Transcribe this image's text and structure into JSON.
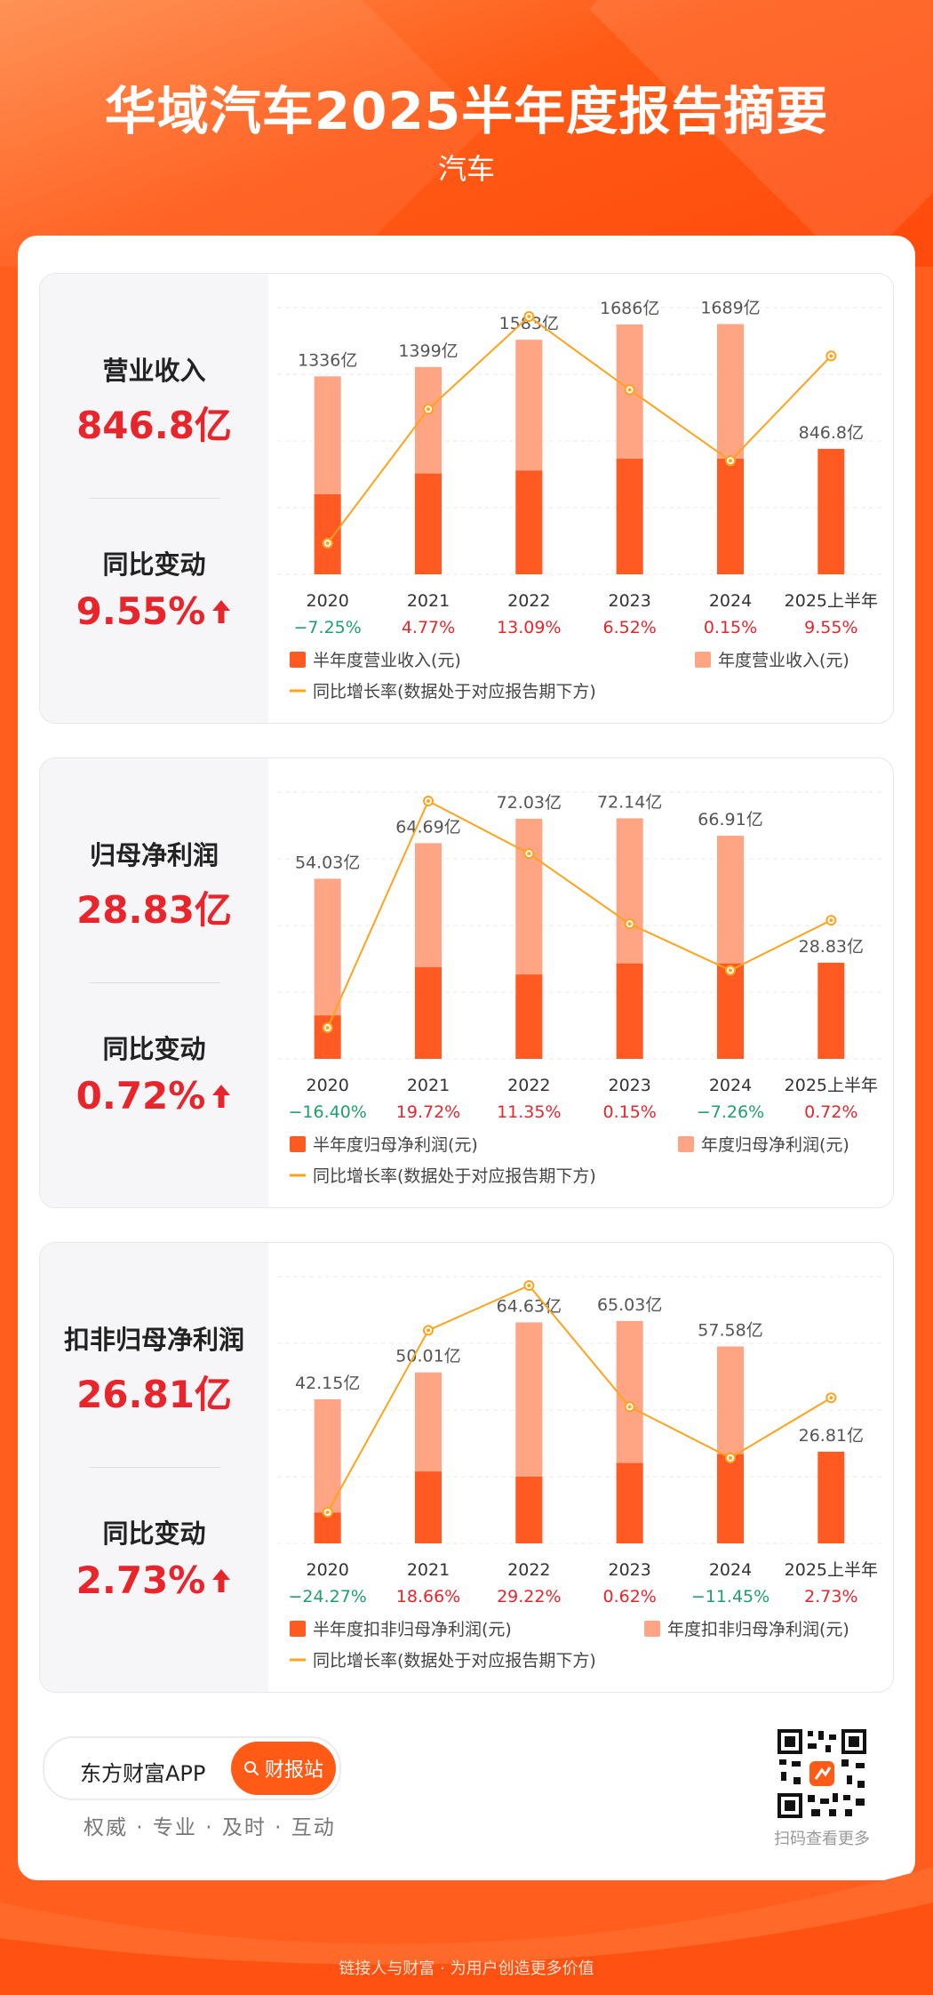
{
  "header": {
    "title": "华域汽车2025半年度报告摘要",
    "subtitle": "汽车"
  },
  "colors": {
    "half": "#ff5a22",
    "annual": "#ffa584",
    "line": "#ffa21c",
    "up": "#e8252b",
    "down": "#1fa06a"
  },
  "panels": [
    {
      "metric_label": "营业收入",
      "metric_value": "846.8亿",
      "change_label": "同比变动",
      "change_value": "9.55%",
      "chart_data": {
        "type": "bar",
        "categories": [
          "2020",
          "2021",
          "2022",
          "2023",
          "2024",
          "2025上半年"
        ],
        "annual_values": [
          1336,
          1399,
          1583,
          1686,
          1689,
          null
        ],
        "half_values": [
          540,
          680,
          700,
          780,
          780,
          846.8
        ],
        "bar_labels": [
          "1336亿",
          "1399亿",
          "1583亿",
          "1686亿",
          "1689亿",
          "846.8亿"
        ],
        "growth": [
          -7.25,
          4.77,
          13.09,
          6.52,
          0.15,
          9.55
        ],
        "growth_labels": [
          "−7.25%",
          "4.77%",
          "13.09%",
          "6.52%",
          "0.15%",
          "9.55%"
        ],
        "ymax": 1800,
        "legend": {
          "half": "半年度营业收入(元)",
          "annual": "年度营业收入(元)",
          "line": "同比增长率(数据处于对应报告期下方)"
        }
      }
    },
    {
      "metric_label": "归母净利润",
      "metric_value": "28.83亿",
      "change_label": "同比变动",
      "change_value": "0.72%",
      "chart_data": {
        "type": "bar",
        "categories": [
          "2020",
          "2021",
          "2022",
          "2023",
          "2024",
          "2025上半年"
        ],
        "annual_values": [
          54.03,
          64.69,
          72.03,
          72.14,
          66.91,
          null
        ],
        "half_values": [
          13,
          27.5,
          25.3,
          28.6,
          28.6,
          28.83
        ],
        "bar_labels": [
          "54.03亿",
          "64.69亿",
          "72.03亿",
          "72.14亿",
          "66.91亿",
          "28.83亿"
        ],
        "growth": [
          -16.4,
          19.72,
          11.35,
          0.15,
          -7.26,
          0.72
        ],
        "growth_labels": [
          "−16.40%",
          "19.72%",
          "11.35%",
          "0.15%",
          "−7.26%",
          "0.72%"
        ],
        "ymax": 80,
        "legend": {
          "half": "半年度归母净利润(元)",
          "annual": "年度归母净利润(元)",
          "line": "同比增长率(数据处于对应报告期下方)"
        }
      }
    },
    {
      "metric_label": "扣非归母净利润",
      "metric_value": "26.81亿",
      "change_label": "同比变动",
      "change_value": "2.73%",
      "chart_data": {
        "type": "bar",
        "categories": [
          "2020",
          "2021",
          "2022",
          "2023",
          "2024",
          "2025上半年"
        ],
        "annual_values": [
          42.15,
          50.01,
          64.63,
          65.03,
          57.58,
          null
        ],
        "half_values": [
          9,
          21,
          19.5,
          23.5,
          26.1,
          26.81
        ],
        "bar_labels": [
          "42.15亿",
          "50.01亿",
          "64.63亿",
          "65.03亿",
          "57.58亿",
          "26.81亿"
        ],
        "growth": [
          -24.27,
          18.66,
          29.22,
          0.62,
          -11.45,
          2.73
        ],
        "growth_labels": [
          "−24.27%",
          "18.66%",
          "29.22%",
          "0.62%",
          "−11.45%",
          "2.73%"
        ],
        "ymax": 78,
        "legend": {
          "half": "半年度扣非归母净利润(元)",
          "annual": "年度扣非归母净利润(元)",
          "line": "同比增长率(数据处于对应报告期下方)"
        }
      }
    }
  ],
  "bottom": {
    "app_name": "东方财富APP",
    "search_button": "财报站",
    "slogan": "权威 · 专业 · 及时 · 互动",
    "qr_caption": "扫码查看更多",
    "footer": "链接人与财富 · 为用户创造更多价值"
  }
}
